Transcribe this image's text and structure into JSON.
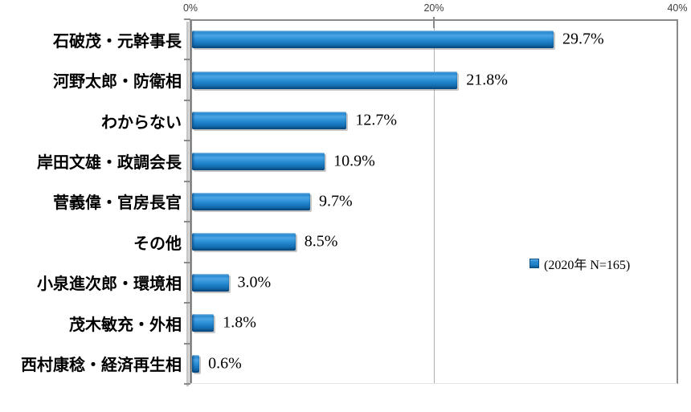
{
  "chart_data": {
    "type": "bar",
    "orientation": "horizontal",
    "title": "",
    "categories": [
      "石破茂・元幹事長",
      "河野太郎・防衛相",
      "わからない",
      "岸田文雄・政調会長",
      "菅義偉・官房長官",
      "その他",
      "小泉進次郎・環境相",
      "茂木敏充・外相",
      "西村康稔・経済再生相"
    ],
    "values": [
      29.7,
      21.8,
      12.7,
      10.9,
      9.7,
      8.5,
      3.0,
      1.8,
      0.6
    ],
    "value_labels": [
      "29.7%",
      "21.8%",
      "12.7%",
      "10.9%",
      "9.7%",
      "8.5%",
      "3.0%",
      "1.8%",
      "0.6%"
    ],
    "series": [
      {
        "name": "(2020年 N=165)",
        "values": [
          29.7,
          21.8,
          12.7,
          10.9,
          9.7,
          8.5,
          3.0,
          1.8,
          0.6
        ]
      }
    ],
    "legend": {
      "label": "(2020年 N=165)",
      "position": "middle-right",
      "marker_color": "#1f81c9"
    },
    "x_axis": {
      "position": "top",
      "min": 0,
      "max": 40,
      "ticks": [
        "0%",
        "20%",
        "40%"
      ],
      "tick_values": [
        0,
        20,
        40
      ]
    },
    "gridlines": [
      20
    ],
    "xlabel": "",
    "ylabel": "",
    "bar_color": "#1f81c9",
    "grid": "single vertical gridline at 20%"
  },
  "colors": {
    "bar_main": "#1f81c9",
    "bar_highlight": "#6ab4e8",
    "bar_dark": "#0d598f",
    "axis": "#8a8a8a",
    "gridline": "#b0b0b0",
    "text": "#000000",
    "tick_text": "#3d3d3d",
    "background": "#ffffff"
  }
}
